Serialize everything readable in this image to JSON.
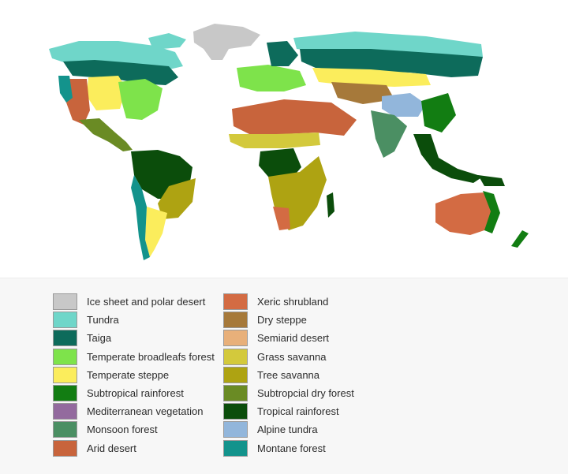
{
  "legend": {
    "left_column": [
      {
        "label": "Ice sheet and polar desert",
        "color": "#c8c8c8"
      },
      {
        "label": "Tundra",
        "color": "#6fd6c9"
      },
      {
        "label": "Taiga",
        "color": "#0d6b5b"
      },
      {
        "label": "Temperate broadleafs forest",
        "color": "#7ee34b"
      },
      {
        "label": "Temperate steppe",
        "color": "#fbed5c"
      },
      {
        "label": "Subtropical rainforest",
        "color": "#127d12"
      },
      {
        "label": "Mediterranean vegetation",
        "color": "#936a9e"
      },
      {
        "label": "Monsoon forest",
        "color": "#4b8f63"
      },
      {
        "label": "Arid desert",
        "color": "#c8643c"
      }
    ],
    "right_column": [
      {
        "label": "Xeric shrubland",
        "color": "#d36b43"
      },
      {
        "label": "Dry steppe",
        "color": "#a6793a"
      },
      {
        "label": "Semiarid desert",
        "color": "#e8b07a"
      },
      {
        "label": "Grass savanna",
        "color": "#d3c93c"
      },
      {
        "label": "Tree savanna",
        "color": "#aea312"
      },
      {
        "label": "Subtropcial dry forest",
        "color": "#6a8b24"
      },
      {
        "label": "Tropical rainforest",
        "color": "#0b4d0b"
      },
      {
        "label": "Alpine tundra",
        "color": "#92b6db"
      },
      {
        "label": "Montane forest",
        "color": "#13938c"
      }
    ]
  }
}
